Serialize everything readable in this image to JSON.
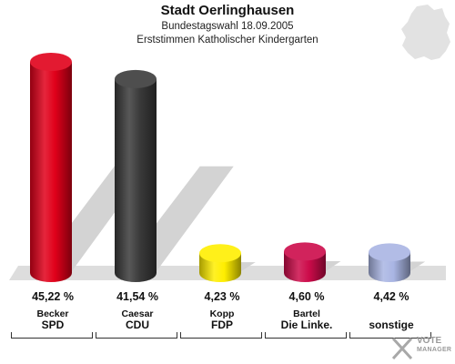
{
  "header": {
    "title": "Stadt Oerlinghausen",
    "subtitle1": "Bundestagswahl 18.09.2005",
    "subtitle2": "Erststimmen Katholischer Kindergarten"
  },
  "colors": {
    "SPD": "#e0001a",
    "CDU": "#3a3a3a",
    "FDP": "#ffee00",
    "Die Linke.": "#cc0b4a",
    "sonstige": "#a9b5e3"
  },
  "chart_data": {
    "type": "bar",
    "title": "Stadt Oerlinghausen",
    "subtitle": "Bundestagswahl 18.09.2005 – Erststimmen Katholischer Kindergarten",
    "categories": [
      "SPD",
      "CDU",
      "FDP",
      "Die Linke.",
      "sonstige"
    ],
    "candidates": [
      "Becker",
      "Caesar",
      "Kopp",
      "Bartel",
      ""
    ],
    "values": [
      45.22,
      41.54,
      4.23,
      4.6,
      4.42
    ],
    "labels": [
      "45,22 %",
      "41,54 %",
      "4,23 %",
      "4,60 %",
      "4,42 %"
    ],
    "ylim": [
      0,
      50
    ],
    "grid": false,
    "legend": "none"
  },
  "brand": {
    "line1": "VOTE",
    "line2": "MANAGER"
  }
}
